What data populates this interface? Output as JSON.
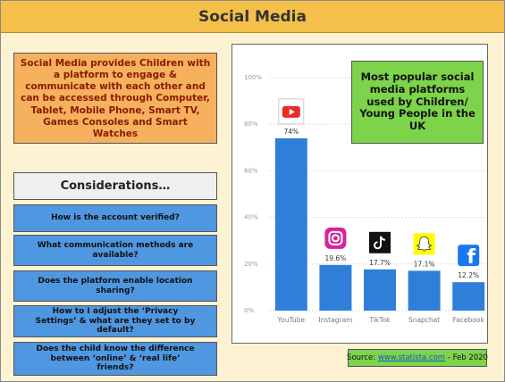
{
  "title": "Social Media",
  "intro": "Social Media provides Children with a platform to engage & communicate with each other and can be accessed through Computer, Tablet, Mobile Phone, Smart TV, Games Consoles and Smart Watches",
  "considerations": {
    "heading": "Considerations…",
    "items": [
      "How is the account verified?",
      "What communication methods are available?",
      "Does the platform enable location sharing?",
      "How to I adjust the ‘Privacy Settings’ & what are they set to by default?",
      "Does the child know the difference between ‘online’ & ‘real life’ friends?"
    ]
  },
  "chart_data": {
    "type": "bar",
    "annotation": "Most popular social media platforms used by Children/ Young People in the UK",
    "categories": [
      "YouTube",
      "Instagram",
      "TikTok",
      "Snapchat",
      "Facebook"
    ],
    "values": [
      74,
      19.6,
      17.7,
      17.1,
      12.2
    ],
    "value_labels": [
      "74%",
      "19.6%",
      "17.7%",
      "17.1%",
      "12.2%"
    ],
    "color": "#2f7fd8",
    "ylim": [
      0,
      100
    ],
    "yticks": [
      {
        "value": 0,
        "label": "0%"
      },
      {
        "value": 20,
        "label": "20%"
      },
      {
        "value": 40,
        "label": "40%"
      },
      {
        "value": 60,
        "label": "60%"
      },
      {
        "value": 80,
        "label": "80%"
      },
      {
        "value": 100,
        "label": "100%"
      }
    ],
    "grid": true
  },
  "source": {
    "prefix": "Source: ",
    "link": "www.statista.com",
    "suffix": " - Feb 2020"
  }
}
